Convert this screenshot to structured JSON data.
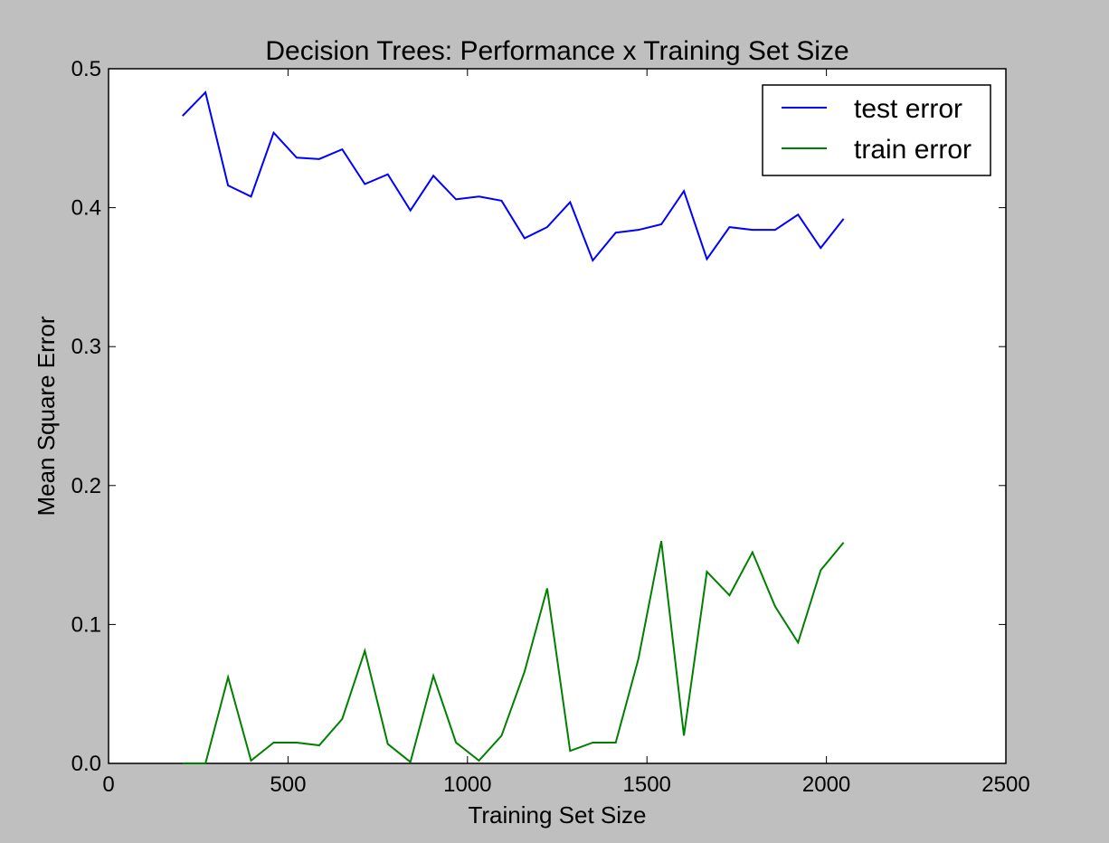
{
  "chart_data": {
    "type": "line",
    "title": "Decision Trees: Performance x Training Set Size",
    "xlabel": "Training Set Size",
    "ylabel": "Mean Square Error",
    "xlim": [
      0,
      2500
    ],
    "ylim": [
      0.0,
      0.5
    ],
    "xticks": [
      0,
      500,
      1000,
      1500,
      2000,
      2500
    ],
    "xtick_labels": [
      "0",
      "500",
      "1000",
      "1500",
      "2000",
      "2500"
    ],
    "yticks": [
      0.0,
      0.1,
      0.2,
      0.3,
      0.4,
      0.5
    ],
    "ytick_labels": [
      "0.0",
      "0.1",
      "0.2",
      "0.3",
      "0.4",
      "0.5"
    ],
    "grid": false,
    "legend_position": "top-right",
    "x": [
      206,
      270,
      333,
      397,
      460,
      524,
      587,
      651,
      714,
      778,
      841,
      905,
      968,
      1032,
      1095,
      1159,
      1222,
      1286,
      1349,
      1413,
      1476,
      1540,
      1603,
      1667,
      1730,
      1794,
      1857,
      1921,
      1984,
      2048
    ],
    "series": [
      {
        "name": "test error",
        "color": "#0000ff",
        "values": [
          0.466,
          0.483,
          0.416,
          0.408,
          0.454,
          0.436,
          0.435,
          0.442,
          0.417,
          0.424,
          0.398,
          0.423,
          0.406,
          0.408,
          0.405,
          0.378,
          0.386,
          0.404,
          0.362,
          0.382,
          0.384,
          0.388,
          0.412,
          0.363,
          0.386,
          0.384,
          0.384,
          0.395,
          0.371,
          0.392
        ]
      },
      {
        "name": "train error",
        "color": "#008000",
        "values": [
          0.0,
          0.0,
          0.062,
          0.002,
          0.015,
          0.015,
          0.013,
          0.032,
          0.081,
          0.014,
          0.001,
          0.063,
          0.015,
          0.002,
          0.02,
          0.066,
          0.126,
          0.009,
          0.015,
          0.015,
          0.075,
          0.16,
          0.02,
          0.138,
          0.121,
          0.152,
          0.113,
          0.087,
          0.139,
          0.159
        ]
      }
    ]
  }
}
